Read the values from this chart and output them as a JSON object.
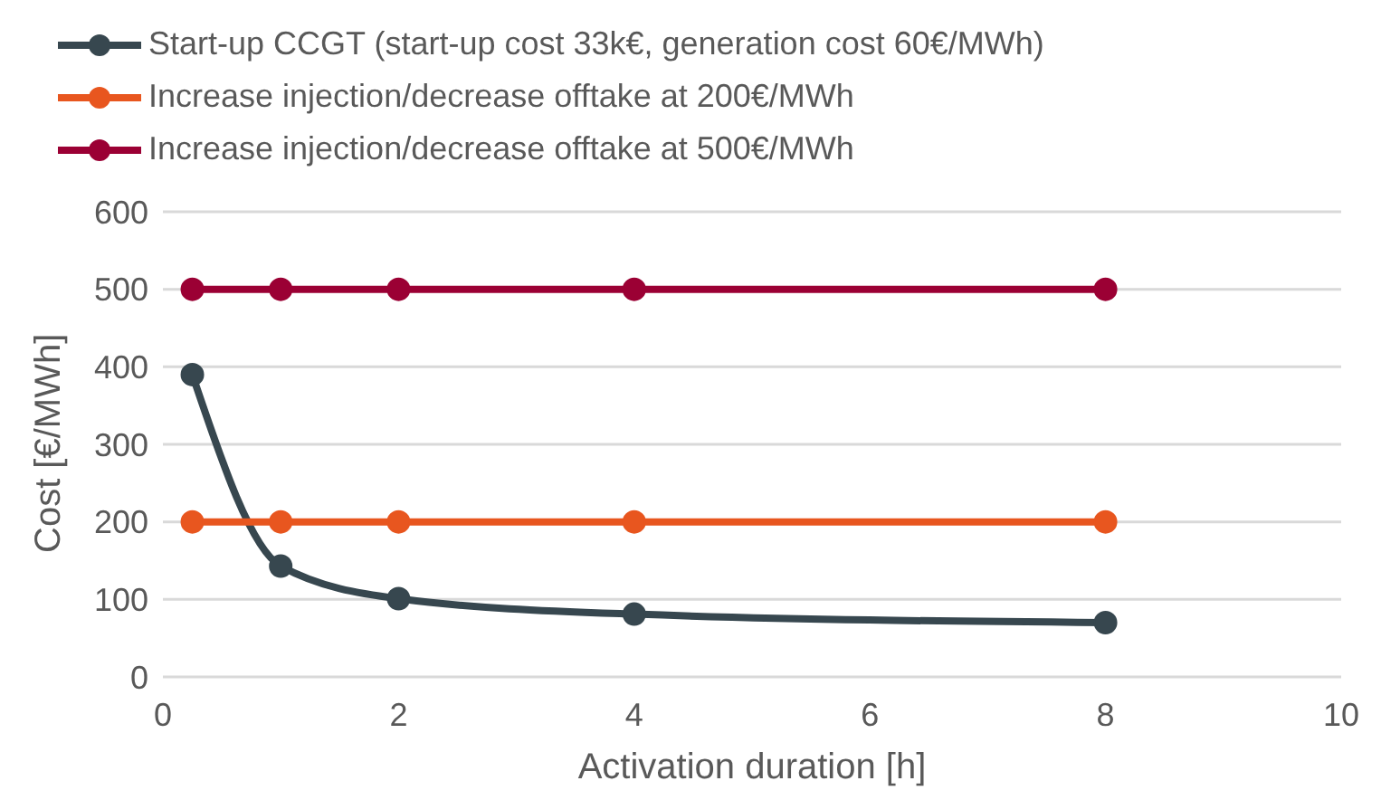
{
  "chart_data": {
    "type": "line",
    "xlabel": "Activation duration [h]",
    "ylabel": "Cost [€/MWh]",
    "x": [
      0.25,
      1,
      2,
      4,
      8
    ],
    "series": [
      {
        "name": "Start-up CCGT (start-up cost 33k€, generation cost 60€/MWh)",
        "color": "#37474f",
        "values": [
          390,
          143,
          101,
          81,
          70
        ]
      },
      {
        "name": "Increase injection/decrease offtake at 200€/MWh",
        "color": "#e8561f",
        "values": [
          200,
          200,
          200,
          200,
          200
        ]
      },
      {
        "name": "Increase injection/decrease offtake at 500€/MWh",
        "color": "#9b0034",
        "values": [
          500,
          500,
          500,
          500,
          500
        ]
      }
    ],
    "xlim": [
      0,
      10
    ],
    "xticks": [
      0,
      2,
      4,
      6,
      8,
      10
    ],
    "ylim": [
      0,
      600
    ],
    "yticks": [
      0,
      100,
      200,
      300,
      400,
      500,
      600
    ],
    "grid": "y",
    "legend": "top left",
    "marker": "circle",
    "line_style": "solid"
  }
}
